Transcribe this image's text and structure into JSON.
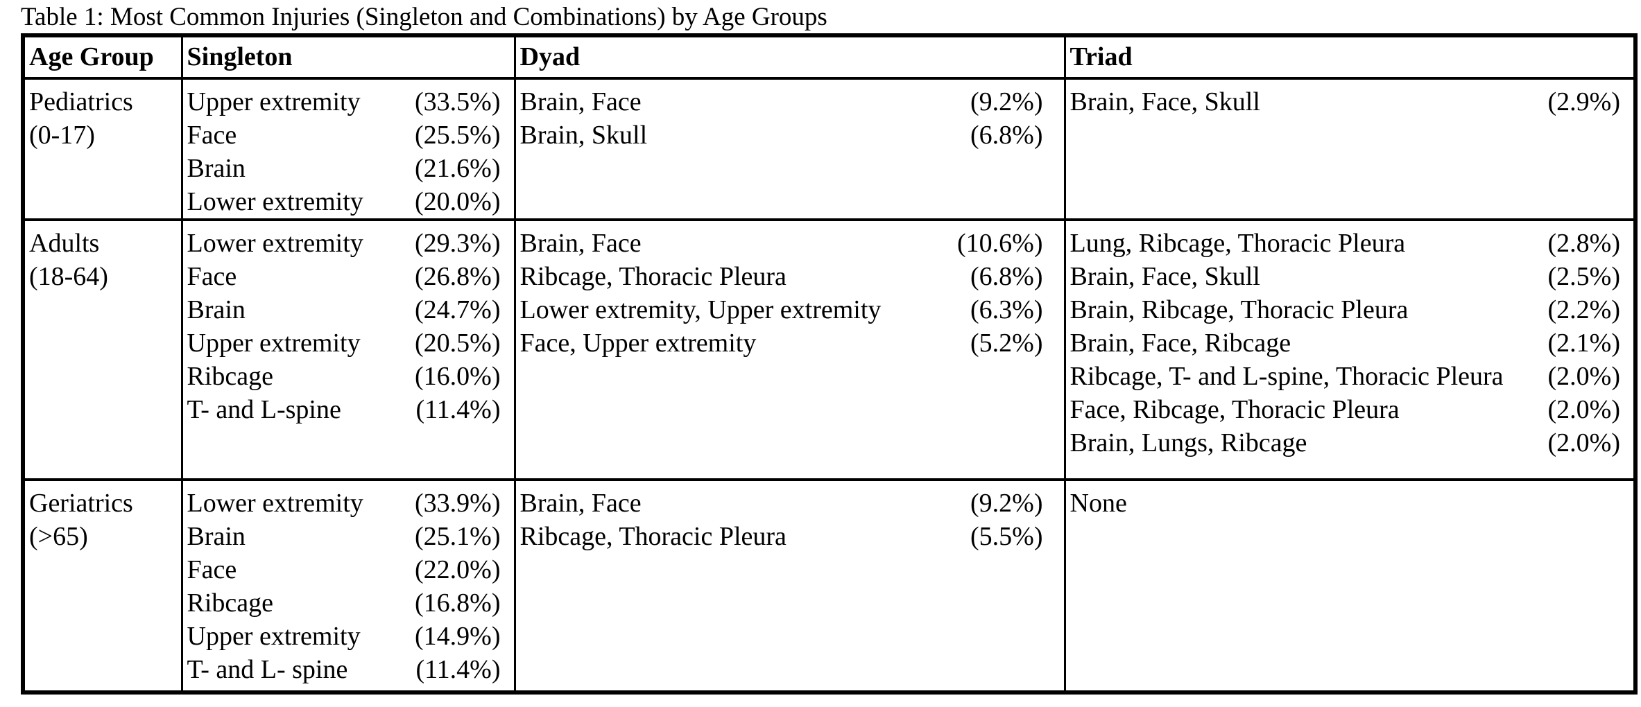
{
  "caption": "Table 1: Most Common Injuries (Singleton and Combinations) by Age Groups",
  "table": {
    "headers": [
      "Age Group",
      "Singleton",
      "Dyad",
      "Triad"
    ],
    "rows": [
      {
        "age_group": "Pediatrics",
        "age_range": "(0-17)",
        "singleton": [
          {
            "injury": "Upper extremity",
            "pct": "(33.5%)"
          },
          {
            "injury": "Face",
            "pct": "(25.5%)"
          },
          {
            "injury": "Brain",
            "pct": "(21.6%)"
          },
          {
            "injury": "Lower extremity",
            "pct": "(20.0%)"
          }
        ],
        "dyad": [
          {
            "injury": "Brain, Face",
            "pct": "(9.2%)"
          },
          {
            "injury": "Brain, Skull",
            "pct": "(6.8%)"
          }
        ],
        "triad": [
          {
            "injury": "Brain, Face, Skull",
            "pct": "(2.9%)"
          }
        ]
      },
      {
        "age_group": "Adults",
        "age_range": "(18-64)",
        "singleton": [
          {
            "injury": "Lower extremity",
            "pct": "(29.3%)"
          },
          {
            "injury": "Face",
            "pct": "(26.8%)"
          },
          {
            "injury": "Brain",
            "pct": "(24.7%)"
          },
          {
            "injury": "Upper extremity",
            "pct": "(20.5%)"
          },
          {
            "injury": "Ribcage",
            "pct": "(16.0%)"
          },
          {
            "injury": "T- and L-spine",
            "pct": "(11.4%)"
          }
        ],
        "dyad": [
          {
            "injury": "Brain, Face",
            "pct": "(10.6%)"
          },
          {
            "injury": "Ribcage, Thoracic Pleura",
            "pct": "(6.8%)"
          },
          {
            "injury": "Lower extremity, Upper extremity",
            "pct": "(6.3%)"
          },
          {
            "injury": "Face, Upper extremity",
            "pct": "(5.2%)"
          }
        ],
        "triad": [
          {
            "injury": "Lung, Ribcage, Thoracic Pleura",
            "pct": "(2.8%)"
          },
          {
            "injury": "Brain, Face, Skull",
            "pct": "(2.5%)"
          },
          {
            "injury": "Brain, Ribcage, Thoracic Pleura",
            "pct": "(2.2%)"
          },
          {
            "injury": "Brain, Face, Ribcage",
            "pct": "(2.1%)"
          },
          {
            "injury": "Ribcage, T- and L-spine, Thoracic Pleura",
            "pct": "(2.0%)"
          },
          {
            "injury": "Face, Ribcage, Thoracic Pleura",
            "pct": "(2.0%)"
          },
          {
            "injury": "Brain, Lungs, Ribcage",
            "pct": "(2.0%)"
          }
        ]
      },
      {
        "age_group": "Geriatrics",
        "age_range": "(>65)",
        "singleton": [
          {
            "injury": "Lower extremity",
            "pct": "(33.9%)"
          },
          {
            "injury": "Brain",
            "pct": "(25.1%)"
          },
          {
            "injury": "Face",
            "pct": "(22.0%)"
          },
          {
            "injury": "Ribcage",
            "pct": "(16.8%)"
          },
          {
            "injury": "Upper extremity",
            "pct": "(14.9%)"
          },
          {
            "injury": "T- and L- spine",
            "pct": "(11.4%)"
          }
        ],
        "dyad": [
          {
            "injury": "Brain, Face",
            "pct": "(9.2%)"
          },
          {
            "injury": "Ribcage, Thoracic Pleura",
            "pct": "(5.5%)"
          }
        ],
        "triad": [
          {
            "injury": "None",
            "pct": ""
          }
        ]
      }
    ]
  },
  "colors": {
    "text": "#000000",
    "border": "#000000",
    "background": "#ffffff"
  }
}
